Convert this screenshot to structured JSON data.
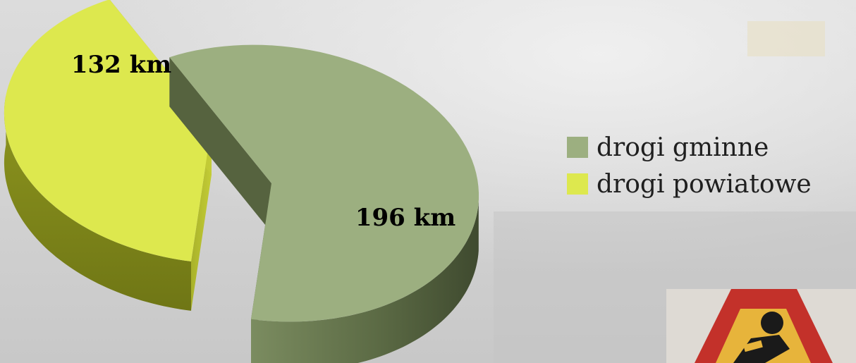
{
  "chart_data": {
    "type": "pie",
    "style": "3d-exploded",
    "categories": [
      "drogi gminne",
      "drogi powiatowe"
    ],
    "values": [
      196,
      132
    ],
    "unit": "km",
    "data_labels": [
      "196 km",
      "132 km"
    ],
    "colors": [
      "#9caf80",
      "#dde84e"
    ],
    "legend": {
      "position": "right",
      "items": [
        {
          "label": "drogi gminne",
          "color": "#9caf80"
        },
        {
          "label": "drogi powiatowe",
          "color": "#dde84e"
        }
      ]
    }
  },
  "background": {
    "description_icon": "road-work-sign-icon"
  }
}
